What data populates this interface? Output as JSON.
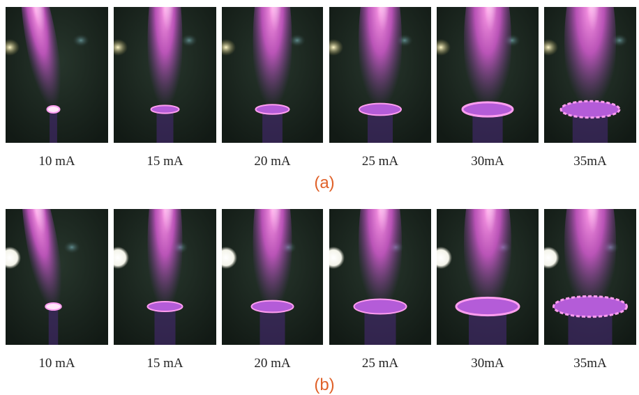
{
  "rows": [
    {
      "caption": "(a)",
      "panels": [
        "10 mA",
        "15 mA",
        "20 mA",
        "25 mA",
        "30mA",
        "35mA"
      ]
    },
    {
      "caption": "(b)",
      "panels": [
        "10 mA",
        "15 mA",
        "20 mA",
        "25 mA",
        "30mA",
        "35mA"
      ]
    }
  ]
}
